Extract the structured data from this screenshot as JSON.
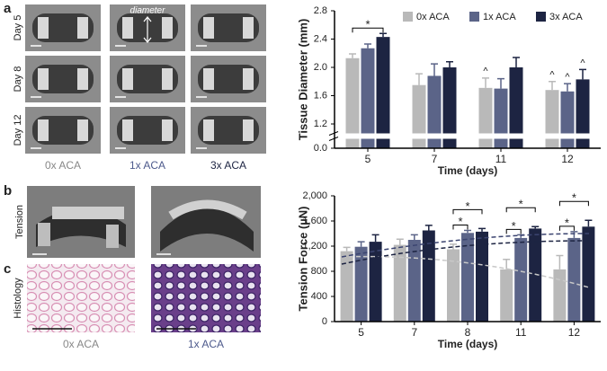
{
  "figure": {
    "panel_a": "a",
    "panel_b": "b",
    "panel_c": "c",
    "rows": [
      "Day 5",
      "Day 8",
      "Day 12"
    ],
    "diameter": "diameter",
    "columns": [
      "0x ACA",
      "1x ACA",
      "3x ACA"
    ],
    "tension": "Tension",
    "histology": "Histology",
    "histology_columns": [
      "0x ACA",
      "1x ACA"
    ]
  },
  "chart_data": [
    {
      "type": "bar",
      "ylabel": "Tissue Diameter (mm)",
      "xlabel": "Time (days)",
      "categories": [
        "5",
        "7",
        "11",
        "12"
      ],
      "ylim": [
        0,
        2.8
      ],
      "ybreak": [
        0,
        1.2
      ],
      "yticks": [
        {
          "value": 0,
          "label": "0.0"
        },
        {
          "value": 1.2,
          "label": "1.2"
        },
        {
          "value": 1.6,
          "label": "1.6"
        },
        {
          "value": 2,
          "label": "2.0"
        },
        {
          "value": 2.4,
          "label": "2.4"
        },
        {
          "value": 2.8,
          "label": "2.8"
        }
      ],
      "grid": false,
      "legend": "top-right",
      "series": [
        {
          "name": "0x ACA",
          "color": "#b9b9b9",
          "values": [
            2.13,
            1.75,
            1.71,
            1.68
          ],
          "errors": [
            0.06,
            0.16,
            0.14,
            0.12
          ]
        },
        {
          "name": "1x ACA",
          "color": "#5b6488",
          "values": [
            2.27,
            1.88,
            1.7,
            1.66
          ],
          "errors": [
            0.06,
            0.17,
            0.14,
            0.11
          ]
        },
        {
          "name": "3x ACA",
          "color": "#1d2442",
          "values": [
            2.43,
            2.0,
            2.0,
            1.83
          ],
          "errors": [
            0.05,
            0.08,
            0.14,
            0.14
          ]
        }
      ],
      "brackets": [
        {
          "label": "*",
          "at": 0,
          "from": 0,
          "to": 2
        }
      ],
      "markers": [
        {
          "label": "^",
          "at": 2,
          "series": 0
        },
        {
          "label": "^",
          "at": 3,
          "series": 0
        },
        {
          "label": "^",
          "at": 3,
          "series": 1
        },
        {
          "label": "^",
          "at": 3,
          "series": 2
        }
      ]
    },
    {
      "type": "bar",
      "ylabel": "Tension Force (µN)",
      "xlabel": "Time (days)",
      "categories": [
        "5",
        "7",
        "8",
        "11",
        "12"
      ],
      "ylim": [
        0,
        2000
      ],
      "yticks": [
        0,
        400,
        800,
        {
          "value": 1200,
          "label": "1,200"
        },
        {
          "value": 1600,
          "label": "1,600"
        },
        {
          "value": 2000,
          "label": "2,000"
        }
      ],
      "grid": false,
      "series": [
        {
          "name": "0x ACA",
          "color": "#b9b9b9",
          "values": [
            1120,
            1220,
            1150,
            830,
            830
          ],
          "errors": [
            60,
            90,
            80,
            160,
            220
          ]
        },
        {
          "name": "1x ACA",
          "color": "#5b6488",
          "values": [
            1190,
            1300,
            1410,
            1330,
            1330
          ],
          "errors": [
            80,
            80,
            40,
            50,
            100
          ]
        },
        {
          "name": "3x ACA",
          "color": "#1d2442",
          "values": [
            1270,
            1450,
            1430,
            1480,
            1510
          ],
          "errors": [
            110,
            80,
            50,
            30,
            100
          ]
        }
      ],
      "brackets": [
        {
          "label": "*",
          "at": 2,
          "from": 0,
          "to": 1
        },
        {
          "label": "*",
          "at": 2,
          "from": 0,
          "to": 2
        },
        {
          "label": "*",
          "at": 3,
          "from": 0,
          "to": 1
        },
        {
          "label": "*",
          "at": 3,
          "from": 0,
          "to": 2
        },
        {
          "label": "*",
          "at": 4,
          "from": 0,
          "to": 1
        },
        {
          "label": "*",
          "at": 4,
          "from": 0,
          "to": 2
        }
      ]
    }
  ]
}
